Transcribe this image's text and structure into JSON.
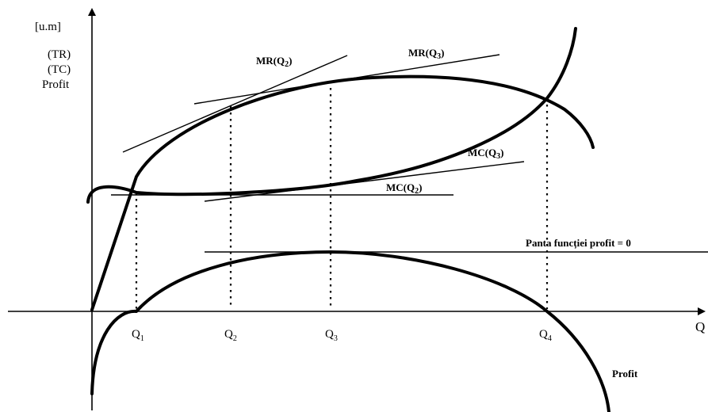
{
  "y_axis_labels": [
    "[u.m]",
    "(TR)",
    "(TC)",
    "Profit"
  ],
  "x_axis_label": "Q",
  "quantity_marks": [
    {
      "base": "Q",
      "sub": "1"
    },
    {
      "base": "Q",
      "sub": "2"
    },
    {
      "base": "Q",
      "sub": "3"
    },
    {
      "base": "Q",
      "sub": "4"
    }
  ],
  "tangent_labels": {
    "mr_q2": {
      "text": "MR(Q",
      "sub": "2",
      "close": ")"
    },
    "mr_q3": {
      "text": "MR(Q",
      "sub": "3",
      "close": ")"
    },
    "mc_q3": {
      "text": "MC(Q",
      "sub": "3",
      "close": ")"
    },
    "mc_q2": {
      "text": "MC(Q",
      "sub": "2",
      "close": ")"
    }
  },
  "profit_slope_label": "Panta funcției profit = 0",
  "profit_curve_label": "Profit"
}
